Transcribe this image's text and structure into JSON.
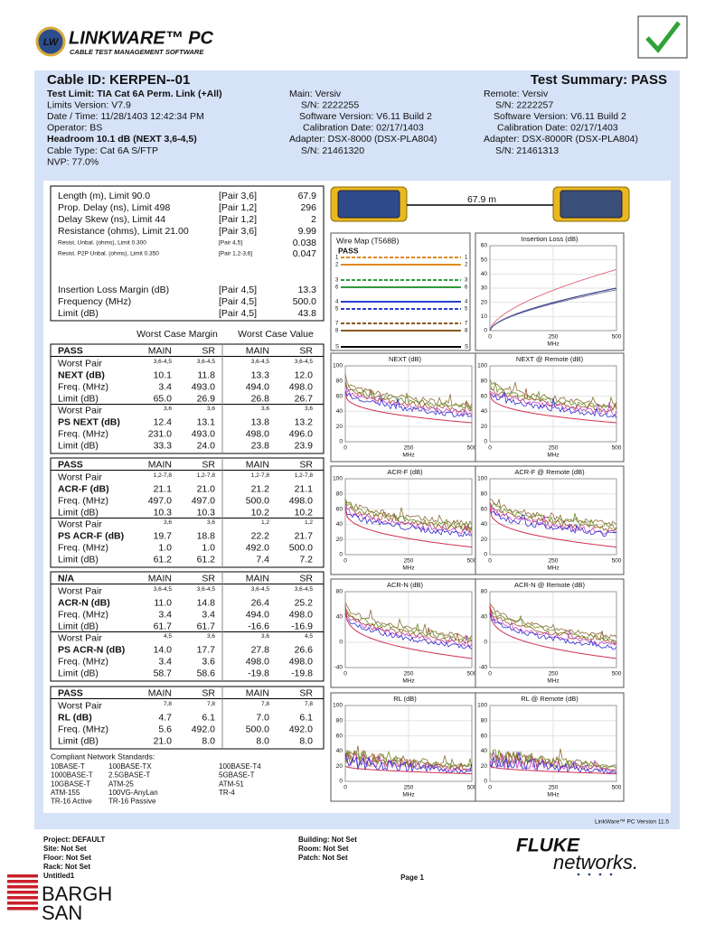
{
  "header": {
    "badge": "LW",
    "title": "LINKWARE™ PC",
    "subtitle": "CABLE TEST MANAGEMENT SOFTWARE"
  },
  "summary": {
    "cable_id": "Cable ID: KERPEN--01",
    "test_summary": "Test Summary: PASS",
    "left": [
      "Test Limit: TIA Cat 6A Perm. Link (+All)",
      "Limits Version: V7.9",
      "Date / Time: 11/28/1403 12:42:34 PM",
      "Operator: BS",
      "Headroom 10.1 dB (NEXT 3,6-4,5)",
      "Cable Type: Cat 6A S/FTP",
      "NVP: 77.0%"
    ],
    "main": [
      "Main: Versiv",
      "S/N: 2222255",
      "Software Version: V6.11 Build 2",
      "Calibration Date: 02/17/1403",
      "Adapter: DSX-8000 (DSX-PLA804)",
      "S/N: 21461320"
    ],
    "remote": [
      "Remote: Versiv",
      "S/N: 2222257",
      "Software Version: V6.11 Build 2",
      "Calibration Date: 02/17/1403",
      "Adapter: DSX-8000R (DSX-PLA804)",
      "S/N: 21461313"
    ]
  },
  "measurements": [
    [
      "Length (m), Limit 90.0",
      "[Pair 3,6]",
      "67.9"
    ],
    [
      "Prop. Delay (ns), Limit 498",
      "[Pair 1,2]",
      "296"
    ],
    [
      "Delay Skew (ns), Limit 44",
      "[Pair 1,2]",
      "2"
    ],
    [
      "Resistance (ohms), Limit 21.00",
      "[Pair 3,6]",
      "9.99"
    ],
    [
      "Resist. Unbal. (ohms), Limit 0.300",
      "[Pair 4,5]",
      "0.038"
    ],
    [
      "Resist. P2P Unbal. (ohms), Limit 0.350",
      "[Pair 1,2-3,6]",
      "0.047"
    ],
    [
      "Insertion Loss Margin (dB)",
      "[Pair 4,5]",
      "13.3"
    ],
    [
      "Frequency (MHz)",
      "[Pair 4,5]",
      "500.0"
    ],
    [
      "Limit (dB)",
      "[Pair 4,5]",
      "43.8"
    ]
  ],
  "worst_case_headers": [
    "Worst Case Margin",
    "Worst Case Value"
  ],
  "tables": [
    [
      [
        "PASS",
        "MAIN",
        "SR",
        "MAIN",
        "SR"
      ],
      [
        "Worst Pair",
        "3,6-4,5",
        "3,6-4,5",
        "3,6-4,5",
        "3,6-4,5"
      ],
      [
        "NEXT (dB)",
        "10.1",
        "11.8",
        "13.3",
        "12.0"
      ],
      [
        "Freq. (MHz)",
        "3.4",
        "493.0",
        "494.0",
        "498.0"
      ],
      [
        "Limit (dB)",
        "65.0",
        "26.9",
        "26.8",
        "26.7"
      ],
      [
        "Worst Pair",
        "3,6",
        "3,6",
        "3,6",
        "3,6"
      ],
      [
        "PS NEXT (dB)",
        "12.4",
        "13.1",
        "13.8",
        "13.2"
      ],
      [
        "Freq. (MHz)",
        "231.0",
        "493.0",
        "498.0",
        "496.0"
      ],
      [
        "Limit (dB)",
        "33.3",
        "24.0",
        "23.8",
        "23.9"
      ]
    ],
    [
      [
        "PASS",
        "MAIN",
        "SR",
        "MAIN",
        "SR"
      ],
      [
        "Worst Pair",
        "1,2-7,8",
        "1,2-7,8",
        "1,2-7,8",
        "1,2-7,8"
      ],
      [
        "ACR-F (dB)",
        "21.1",
        "21.0",
        "21.2",
        "21.1"
      ],
      [
        "Freq. (MHz)",
        "497.0",
        "497.0",
        "500.0",
        "498.0"
      ],
      [
        "Limit (dB)",
        "10.3",
        "10.3",
        "10.2",
        "10.2"
      ],
      [
        "Worst Pair",
        "3,6",
        "3,6",
        "1,2",
        "1,2"
      ],
      [
        "PS ACR-F (dB)",
        "19.7",
        "18.8",
        "22.2",
        "21.7"
      ],
      [
        "Freq. (MHz)",
        "1.0",
        "1.0",
        "492.0",
        "500.0"
      ],
      [
        "Limit (dB)",
        "61.2",
        "61.2",
        "7.4",
        "7.2"
      ]
    ],
    [
      [
        "N/A",
        "MAIN",
        "SR",
        "MAIN",
        "SR"
      ],
      [
        "Worst Pair",
        "3,6-4,5",
        "3,6-4,5",
        "3,6-4,5",
        "3,6-4,5"
      ],
      [
        "ACR-N (dB)",
        "11.0",
        "14.8",
        "26.4",
        "25.2"
      ],
      [
        "Freq. (MHz)",
        "3.4",
        "3.4",
        "494.0",
        "498.0"
      ],
      [
        "Limit (dB)",
        "61.7",
        "61.7",
        "-16.6",
        "-16.9"
      ],
      [
        "Worst Pair",
        "4,5",
        "3,6",
        "3,6",
        "4,5"
      ],
      [
        "PS ACR-N (dB)",
        "14.0",
        "17.7",
        "27.8",
        "26.6"
      ],
      [
        "Freq. (MHz)",
        "3.4",
        "3.6",
        "498.0",
        "498.0"
      ],
      [
        "Limit (dB)",
        "58.7",
        "58.6",
        "-19.8",
        "-19.8"
      ]
    ],
    [
      [
        "PASS",
        "MAIN",
        "SR",
        "MAIN",
        "SR"
      ],
      [
        "Worst Pair",
        "7,8",
        "7,8",
        "7,8",
        "7,8"
      ],
      [
        "RL (dB)",
        "4.7",
        "6.1",
        "7.0",
        "6.1"
      ],
      [
        "Freq. (MHz)",
        "5.6",
        "492.0",
        "500.0",
        "492.0"
      ],
      [
        "Limit (dB)",
        "21.0",
        "8.0",
        "8.0",
        "8.0"
      ]
    ]
  ],
  "standards": {
    "title": "Compliant Network Standards:",
    "rows": [
      [
        "10BASE-T",
        "100BASE-TX",
        "100BASE-T4"
      ],
      [
        "1000BASE-T",
        "2.5GBASE-T",
        "5GBASE-T"
      ],
      [
        "10GBASE-T",
        "ATM-25",
        "ATM-51"
      ],
      [
        "ATM-155",
        "100VG-AnyLan",
        "TR-4"
      ],
      [
        "TR-16 Active",
        "TR-16 Passive"
      ]
    ]
  },
  "length_label": "67.9 m",
  "wire_map": {
    "title": "Wire Map (T568B)",
    "status": "PASS",
    "pins": [
      "1",
      "2",
      "3",
      "6",
      "4",
      "5",
      "7",
      "8",
      "S"
    ]
  },
  "graphs": [
    {
      "title": "Insertion Loss (dB)",
      "yticks": [
        0,
        10,
        20,
        30,
        40,
        50,
        60
      ],
      "xticks": [
        0,
        250,
        500
      ],
      "xlabel": "MHz"
    },
    {
      "title": "NEXT (dB)",
      "yticks": [
        0,
        20,
        40,
        60,
        80,
        100
      ],
      "xticks": [
        0,
        250,
        500
      ],
      "xlabel": "MHz"
    },
    {
      "title": "NEXT @ Remote (dB)",
      "yticks": [
        0,
        20,
        40,
        60,
        80,
        100
      ],
      "xticks": [
        0,
        250,
        500
      ],
      "xlabel": "MHz"
    },
    {
      "title": "ACR-F (dB)",
      "yticks": [
        0,
        20,
        40,
        60,
        80,
        100
      ],
      "xticks": [
        0,
        250,
        500
      ],
      "xlabel": "MHz"
    },
    {
      "title": "ACR-F @ Remote (dB)",
      "yticks": [
        0,
        20,
        40,
        60,
        80,
        100
      ],
      "xticks": [
        0,
        250,
        500
      ],
      "xlabel": "MHz"
    },
    {
      "title": "ACR-N (dB)",
      "yticks": [
        -40,
        0,
        40,
        80
      ],
      "xticks": [
        0,
        250,
        500
      ],
      "xlabel": "MHz"
    },
    {
      "title": "ACR-N @ Remote (dB)",
      "yticks": [
        -40,
        0,
        40,
        80
      ],
      "xticks": [
        0,
        250,
        500
      ],
      "xlabel": "MHz"
    },
    {
      "title": "RL (dB)",
      "yticks": [
        0,
        20,
        40,
        60,
        80,
        100
      ],
      "xticks": [
        0,
        250,
        500
      ],
      "xlabel": "MHz"
    },
    {
      "title": "RL @ Remote (dB)",
      "yticks": [
        0,
        20,
        40,
        60,
        80,
        100
      ],
      "xticks": [
        0,
        250,
        500
      ],
      "xlabel": "MHz"
    }
  ],
  "footer": {
    "version": "LinkWare™ PC Version 11.5",
    "project": [
      "Project: DEFAULT",
      "Site: Not Set",
      "Floor: Not Set",
      "Rack: Not Set",
      "Untitled1"
    ],
    "building": [
      "Building: Not Set",
      "Room: Not Set",
      "Patch: Not Set"
    ],
    "page": "Page 1",
    "brand_fluke": "FLUKE",
    "brand_networks": "networks.",
    "logo_top": "BARGH",
    "logo_bottom": "SAN"
  }
}
